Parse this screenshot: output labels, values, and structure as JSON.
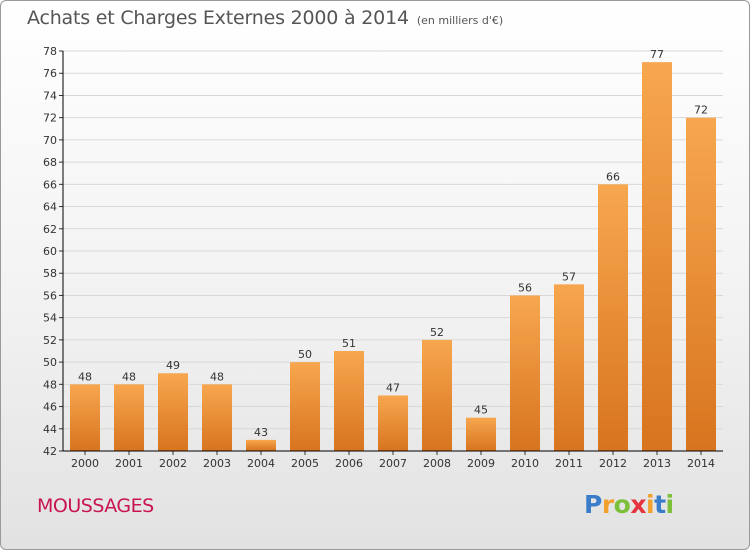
{
  "header": {
    "title": "Achats et Charges Externes 2000 à 2014",
    "unit": "(en milliers d'€)"
  },
  "footer": {
    "place": "MOUSSAGES",
    "logo": {
      "letters": [
        "P",
        "r",
        "o",
        "x",
        "i",
        "t",
        "i"
      ],
      "colors": [
        "#3a7dc9",
        "#f2a12e",
        "#7cbf3a",
        "#e5343f",
        "#f2a12e",
        "#3a7dc9",
        "#7cbf3a"
      ]
    }
  },
  "chart_data": {
    "type": "bar",
    "title": "Achats et Charges Externes 2000 à 2014",
    "categories": [
      "2000",
      "2001",
      "2002",
      "2003",
      "2004",
      "2005",
      "2006",
      "2007",
      "2008",
      "2009",
      "2010",
      "2011",
      "2012",
      "2013",
      "2014"
    ],
    "values": [
      48,
      48,
      49,
      48,
      43,
      50,
      51,
      47,
      52,
      45,
      56,
      57,
      66,
      77,
      72
    ],
    "value_labels": [
      "48",
      "48",
      "49",
      "48",
      "43",
      "50",
      "51",
      "47",
      "52",
      "45",
      "56",
      "57",
      "66",
      "77",
      "72"
    ],
    "ylim": [
      42,
      78
    ],
    "yticks": [
      42,
      44,
      46,
      48,
      50,
      52,
      54,
      56,
      58,
      60,
      62,
      64,
      66,
      68,
      70,
      72,
      74,
      76,
      78
    ],
    "grid": true,
    "colors": {
      "bar_light": "#f7a74f",
      "bar_dark": "#d8741f",
      "grid": "#d8d8d8",
      "axis": "#000000"
    }
  }
}
